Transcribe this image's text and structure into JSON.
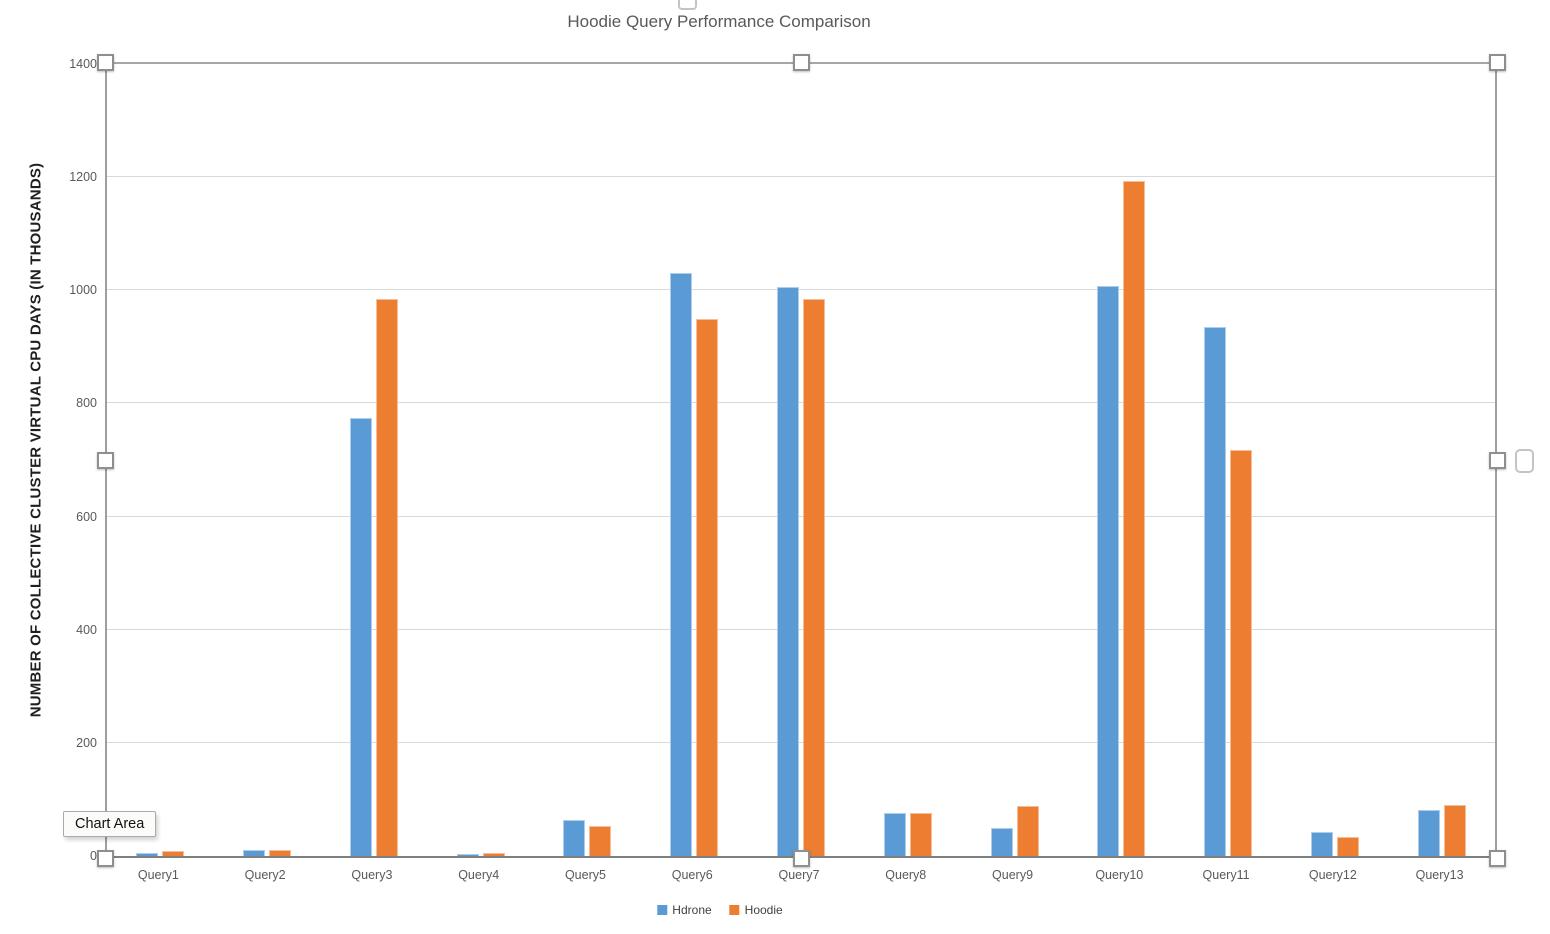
{
  "chart_data": {
    "type": "bar",
    "title": "Hoodie Query Performance Comparison",
    "ylabel": "NUMBER OF COLLECTIVE CLUSTER VIRTUAL CPU DAYS (IN THOUSANDS)",
    "xlabel": "",
    "ylim": [
      0,
      1400
    ],
    "yticks": [
      0,
      200,
      400,
      600,
      800,
      1000,
      1200,
      1400
    ],
    "grid": true,
    "legend_position": "bottom-center",
    "categories": [
      "Query1",
      "Query2",
      "Query3",
      "Query4",
      "Query5",
      "Query6",
      "Query7",
      "Query8",
      "Query9",
      "Query10",
      "Query11",
      "Query12",
      "Query13"
    ],
    "series": [
      {
        "name": "Hdrone",
        "color": "#5B9BD5",
        "values": [
          5,
          10,
          775,
          4,
          63,
          1030,
          1005,
          76,
          50,
          1008,
          935,
          42,
          82
        ]
      },
      {
        "name": "Hoodie",
        "color": "#ED7D31",
        "values": [
          9,
          10,
          985,
          5,
          53,
          950,
          985,
          76,
          88,
          1193,
          718,
          33,
          91
        ]
      }
    ]
  },
  "overlay": {
    "chart_area_label": "Chart Area"
  },
  "colors": {
    "series_hdrone": "#5B9BD5",
    "series_hoodie": "#ED7D31",
    "title_text": "#595959",
    "axis_text": "#595959",
    "gridline": "#D9D9D9",
    "axis_line": "#7F7F7F",
    "selection_border": "#A6A6A6",
    "handle_fill": "#FFFFFF"
  }
}
